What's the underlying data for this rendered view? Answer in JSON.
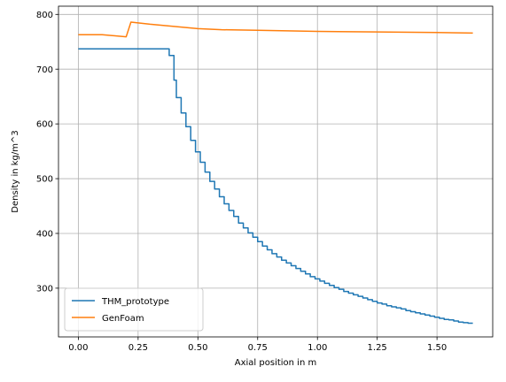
{
  "chart_data": {
    "type": "line",
    "title": "",
    "xlabel": "Axial position in m",
    "ylabel": "Density in kg/m^3",
    "xlim": [
      -0.083,
      1.733
    ],
    "ylim": [
      211,
      815
    ],
    "xticks": [
      0.0,
      0.25,
      0.5,
      0.75,
      1.0,
      1.25,
      1.5
    ],
    "xtick_labels": [
      "0.00",
      "0.25",
      "0.50",
      "0.75",
      "1.00",
      "1.25",
      "1.50"
    ],
    "yticks": [
      300,
      400,
      500,
      600,
      700,
      800
    ],
    "ytick_labels": [
      "300",
      "400",
      "500",
      "600",
      "700",
      "800"
    ],
    "grid": true,
    "legend_position": "lower-left",
    "series": [
      {
        "name": "THM_prototype",
        "color": "#1f77b4",
        "style": "steps-post",
        "x": [
          0.0,
          0.38,
          0.4,
          0.41,
          0.43,
          0.45,
          0.47,
          0.49,
          0.51,
          0.53,
          0.55,
          0.57,
          0.59,
          0.61,
          0.63,
          0.65,
          0.67,
          0.69,
          0.71,
          0.73,
          0.75,
          0.77,
          0.79,
          0.81,
          0.83,
          0.85,
          0.87,
          0.89,
          0.91,
          0.93,
          0.95,
          0.97,
          0.99,
          1.01,
          1.03,
          1.05,
          1.07,
          1.09,
          1.11,
          1.13,
          1.15,
          1.17,
          1.19,
          1.21,
          1.23,
          1.25,
          1.27,
          1.29,
          1.31,
          1.33,
          1.35,
          1.37,
          1.39,
          1.41,
          1.43,
          1.45,
          1.47,
          1.49,
          1.51,
          1.53,
          1.55,
          1.57,
          1.59,
          1.61,
          1.63,
          1.65
        ],
        "y": [
          737,
          725,
          680,
          648,
          620,
          595,
          570,
          549,
          530,
          512,
          495,
          481,
          467,
          454,
          442,
          431,
          419,
          410,
          401,
          393,
          385,
          377,
          370,
          363,
          357,
          351,
          346,
          341,
          336,
          331,
          326,
          321,
          317,
          313,
          309,
          305,
          301,
          298,
          294,
          291,
          288,
          285,
          282,
          279,
          276,
          273,
          271,
          268,
          266,
          264,
          262,
          259,
          257,
          255,
          253,
          251,
          249,
          247,
          245,
          243,
          242,
          240,
          238,
          237,
          236,
          236
        ]
      },
      {
        "name": "GenFoam",
        "color": "#ff7f0e",
        "style": "line",
        "x": [
          0.0,
          0.1,
          0.2,
          0.22,
          0.3,
          0.4,
          0.5,
          0.6,
          0.75,
          1.0,
          1.25,
          1.5,
          1.65
        ],
        "y": [
          763,
          763,
          759,
          786,
          782,
          778,
          774,
          772,
          771,
          769,
          768,
          767,
          766
        ]
      }
    ]
  }
}
